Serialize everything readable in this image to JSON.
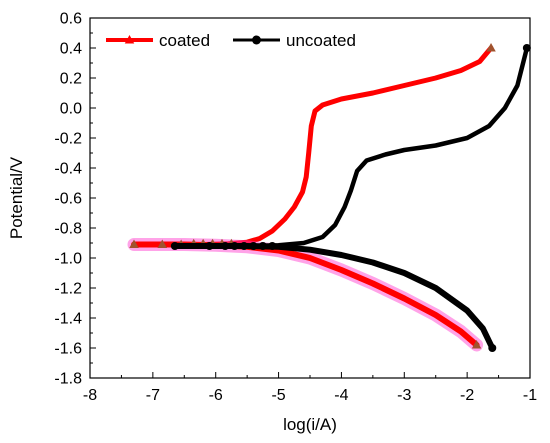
{
  "chart_data": {
    "type": "line",
    "title": "",
    "xlabel": "log(i/A)",
    "ylabel": "Potential/V",
    "xlim": [
      -8,
      -1
    ],
    "ylim": [
      -1.8,
      0.6
    ],
    "xticks": [
      -8,
      -7,
      -6,
      -5,
      -4,
      -3,
      -2,
      -1
    ],
    "yticks": [
      0.6,
      0.4,
      0.2,
      0.0,
      -0.2,
      -0.4,
      -0.6,
      -0.8,
      -1.0,
      -1.2,
      -1.4,
      -1.6,
      -1.8
    ],
    "ytick_labels": [
      "0.6",
      "0.4",
      "0.2",
      "0.0",
      "-0.2",
      "-0.4",
      "-0.6",
      "-0.8",
      "-1.0",
      "-1.2",
      "-1.4",
      "-1.6",
      "-1.8"
    ],
    "legend_position": "top-left",
    "grid": false,
    "series": [
      {
        "name": "coated",
        "color": "#ff0000",
        "marker": "triangle",
        "anodic": [
          [
            -7.3,
            -0.91
          ],
          [
            -6.8,
            -0.91
          ],
          [
            -6.2,
            -0.91
          ],
          [
            -5.8,
            -0.905
          ],
          [
            -5.5,
            -0.895
          ],
          [
            -5.3,
            -0.87
          ],
          [
            -5.1,
            -0.82
          ],
          [
            -4.9,
            -0.74
          ],
          [
            -4.75,
            -0.66
          ],
          [
            -4.62,
            -0.56
          ],
          [
            -4.56,
            -0.46
          ],
          [
            -4.52,
            -0.3
          ],
          [
            -4.48,
            -0.12
          ],
          [
            -4.42,
            -0.02
          ],
          [
            -4.3,
            0.02
          ],
          [
            -4.0,
            0.06
          ],
          [
            -3.5,
            0.1
          ],
          [
            -3.0,
            0.15
          ],
          [
            -2.5,
            0.2
          ],
          [
            -2.1,
            0.25
          ],
          [
            -1.8,
            0.31
          ],
          [
            -1.62,
            0.4
          ]
        ],
        "cathodic": [
          [
            -7.3,
            -0.91
          ],
          [
            -6.5,
            -0.91
          ],
          [
            -6.0,
            -0.915
          ],
          [
            -5.5,
            -0.925
          ],
          [
            -5.0,
            -0.95
          ],
          [
            -4.5,
            -1.0
          ],
          [
            -4.0,
            -1.08
          ],
          [
            -3.5,
            -1.17
          ],
          [
            -3.0,
            -1.27
          ],
          [
            -2.5,
            -1.38
          ],
          [
            -2.1,
            -1.49
          ],
          [
            -1.85,
            -1.58
          ]
        ],
        "markers": [
          [
            -7.3,
            -0.91
          ],
          [
            -6.85,
            -0.91
          ],
          [
            -6.55,
            -0.91
          ],
          [
            -6.35,
            -0.905
          ],
          [
            -6.2,
            -0.905
          ],
          [
            -6.05,
            -0.905
          ],
          [
            -5.9,
            -0.905
          ],
          [
            -5.75,
            -0.905
          ],
          [
            -1.62,
            0.4
          ],
          [
            -1.85,
            -1.58
          ]
        ]
      },
      {
        "name": "uncoated",
        "color": "#000000",
        "marker": "circle",
        "anodic": [
          [
            -6.65,
            -0.92
          ],
          [
            -6.0,
            -0.92
          ],
          [
            -5.5,
            -0.92
          ],
          [
            -5.0,
            -0.915
          ],
          [
            -4.6,
            -0.9
          ],
          [
            -4.3,
            -0.86
          ],
          [
            -4.1,
            -0.78
          ],
          [
            -3.95,
            -0.66
          ],
          [
            -3.85,
            -0.55
          ],
          [
            -3.75,
            -0.42
          ],
          [
            -3.6,
            -0.35
          ],
          [
            -3.3,
            -0.31
          ],
          [
            -3.0,
            -0.28
          ],
          [
            -2.5,
            -0.25
          ],
          [
            -2.0,
            -0.2
          ],
          [
            -1.65,
            -0.12
          ],
          [
            -1.4,
            0.0
          ],
          [
            -1.2,
            0.15
          ],
          [
            -1.05,
            0.4
          ]
        ],
        "cathodic": [
          [
            -6.65,
            -0.92
          ],
          [
            -6.0,
            -0.92
          ],
          [
            -5.5,
            -0.92
          ],
          [
            -5.0,
            -0.925
          ],
          [
            -4.5,
            -0.945
          ],
          [
            -4.0,
            -0.98
          ],
          [
            -3.5,
            -1.03
          ],
          [
            -3.0,
            -1.1
          ],
          [
            -2.5,
            -1.2
          ],
          [
            -2.0,
            -1.35
          ],
          [
            -1.75,
            -1.47
          ],
          [
            -1.6,
            -1.6
          ]
        ],
        "markers": [
          [
            -6.65,
            -0.92
          ],
          [
            -6.1,
            -0.92
          ],
          [
            -5.85,
            -0.92
          ],
          [
            -5.7,
            -0.92
          ],
          [
            -5.55,
            -0.92
          ],
          [
            -5.4,
            -0.92
          ],
          [
            -5.25,
            -0.92
          ],
          [
            -5.1,
            -0.92
          ],
          [
            -1.05,
            0.4
          ],
          [
            -1.6,
            -1.6
          ]
        ]
      }
    ]
  }
}
